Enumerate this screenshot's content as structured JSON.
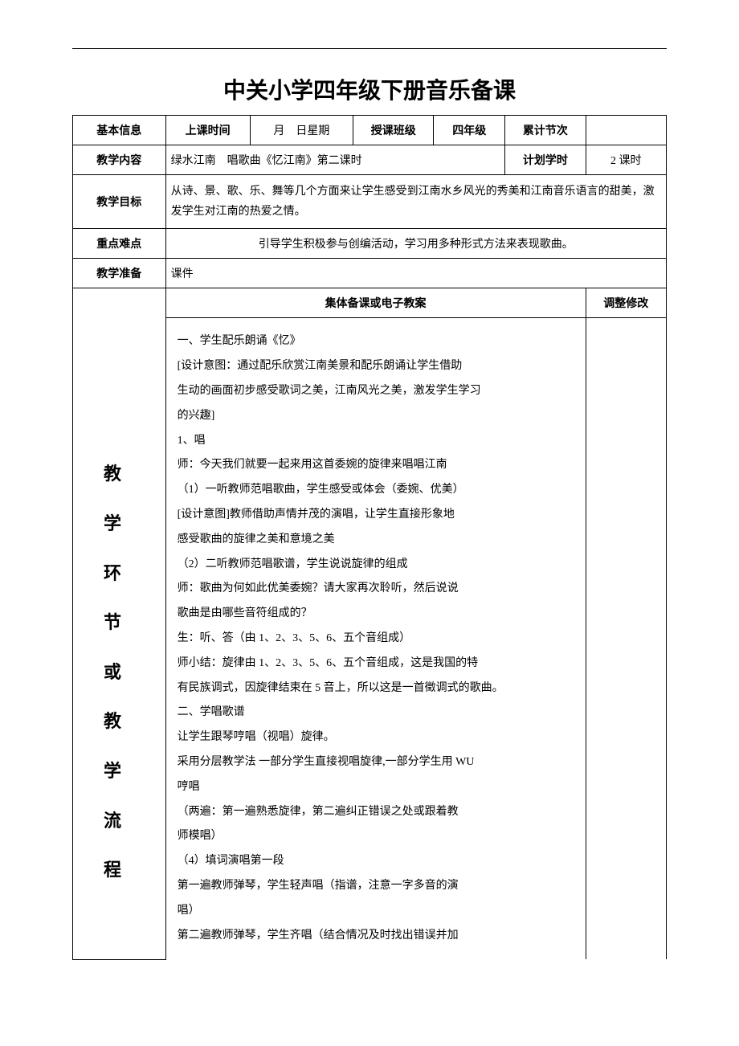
{
  "page_title": "中关小学四年级下册音乐备课",
  "rows": {
    "basic_info": {
      "label": "基本信息",
      "class_time_label": "上课时间",
      "date_value": "月　日星期",
      "class_label": "授课班级",
      "class_value": "四年级",
      "total_sessions_label": "累计节次",
      "total_sessions_value": ""
    },
    "teaching_content": {
      "label": "教学内容",
      "value": "绿水江南　唱歌曲《忆江南》第二课时",
      "planned_hours_label": "计划学时",
      "planned_hours_value": "2 课时"
    },
    "teaching_goal": {
      "label": "教学目标",
      "value": "从诗、景、歌、乐、舞等几个方面来让学生感受到江南水乡风光的秀美和江南音乐语言的甜美，激发学生对江南的热爱之情。"
    },
    "key_difficulty": {
      "label": "重点难点",
      "value": "引导学生积极参与创编活动，学习用多种形式方法来表现歌曲。"
    },
    "teaching_prep": {
      "label": "教学准备",
      "value": "课件"
    },
    "process": {
      "label": "教学环节或教学流程",
      "section_header": "集体备课或电子教案",
      "adjust_header": "调整修改",
      "lines": [
        {
          "cls": "indent-1",
          "text": "一、学生配乐朗诵《忆》"
        },
        {
          "cls": "indent-2",
          "text": "[设计意图：通过配乐欣赏江南美景和配乐朗诵让学生借助"
        },
        {
          "cls": "",
          "text": "生动的画面初步感受歌词之美，江南风光之美，激发学生学习"
        },
        {
          "cls": "",
          "text": "的兴趣]"
        },
        {
          "cls": "",
          "text": "1、唱"
        },
        {
          "cls": "indent-2",
          "text": "师：今天我们就要一起来用这首委婉的旋律来唱唱江南"
        },
        {
          "cls": "indent-2",
          "text": "（1）一听教师范唱歌曲，学生感受或体会（委婉、优美）"
        },
        {
          "cls": "indent-2",
          "text": "[设计意图]教师借助声情并茂的演唱，让学生直接形象地"
        },
        {
          "cls": "",
          "text": "感受歌曲的旋律之美和意境之美"
        },
        {
          "cls": "indent-2",
          "text": "（2）二听教师范唱歌谱，学生说说旋律的组成"
        },
        {
          "cls": "indent-2",
          "text": "师：歌曲为何如此优美委婉？请大家再次聆听，然后说说"
        },
        {
          "cls": "",
          "text": "歌曲是由哪些音符组成的？"
        },
        {
          "cls": "indent-1",
          "text": "生：听、答（由 1、2、3、5、6、五个音组成）"
        },
        {
          "cls": "indent-1",
          "text": "师小结：旋律由 1、2、3、5、6、五个音组成，这是我国的特"
        },
        {
          "cls": "",
          "text": "有民族调式，因旋律结束在 5 音上，所以这是一首徵调式的歌曲。"
        },
        {
          "cls": "indent-2",
          "text": "二、学唱歌谱"
        },
        {
          "cls": "indent-2",
          "text": "让学生跟琴哼唱（视唱）旋律。"
        },
        {
          "cls": "indent-1",
          "text": "采用分层教学法 一部分学生直接视唱旋律,一部分学生用 WU"
        },
        {
          "cls": "",
          "text": "哼唱"
        },
        {
          "cls": "indent-2",
          "text": "（两遍：第一遍熟悉旋律，第二遍纠正错误之处或跟着教"
        },
        {
          "cls": "",
          "text": "师模唱）"
        },
        {
          "cls": "indent-2",
          "text": "（4）填词演唱第一段"
        },
        {
          "cls": "indent-2",
          "text": "第一遍教师弹琴，学生轻声唱（指谱，注意一字多音的演"
        },
        {
          "cls": "",
          "text": "唱）"
        },
        {
          "cls": "indent-2",
          "text": "第二遍教师弹琴，学生齐唱（结合情况及时找出错误并加"
        }
      ]
    }
  }
}
